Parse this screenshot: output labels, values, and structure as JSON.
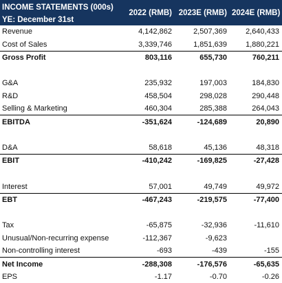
{
  "header": {
    "title": "INCOME STATEMENTS (000s)",
    "subtitle": "YE: December 31st",
    "columns": [
      "2022 (RMB)",
      "2023E (RMB)",
      "2024E (RMB)"
    ]
  },
  "colors": {
    "header_bg": "#16355f",
    "header_text": "#ffffff",
    "line": "#000000"
  },
  "rows": [
    {
      "label": "Revenue",
      "values": [
        "4,142,862",
        "2,507,369",
        "2,640,433"
      ]
    },
    {
      "label": "Cost of Sales",
      "values": [
        "3,339,746",
        "1,851,639",
        "1,880,221"
      ]
    },
    {
      "label": "Gross Profit",
      "values": [
        "803,116",
        "655,730",
        "760,211"
      ],
      "bold": true
    },
    {
      "spacer": true
    },
    {
      "label": "G&A",
      "values": [
        "235,932",
        "197,003",
        "184,830"
      ]
    },
    {
      "label": "R&D",
      "values": [
        "458,504",
        "298,028",
        "290,448"
      ]
    },
    {
      "label": "Selling & Marketing",
      "values": [
        "460,304",
        "285,388",
        "264,043"
      ]
    },
    {
      "label": "EBITDA",
      "values": [
        "-351,624",
        "-124,689",
        "20,890"
      ],
      "bold": true
    },
    {
      "spacer": true
    },
    {
      "label": "D&A",
      "values": [
        "58,618",
        "45,136",
        "48,318"
      ]
    },
    {
      "label": "EBIT",
      "values": [
        "-410,242",
        "-169,825",
        "-27,428"
      ],
      "bold": true
    },
    {
      "spacer": true
    },
    {
      "label": "Interest",
      "values": [
        "57,001",
        "49,749",
        "49,972"
      ]
    },
    {
      "label": "EBT",
      "values": [
        "-467,243",
        "-219,575",
        "-77,400"
      ],
      "bold": true
    },
    {
      "spacer": true
    },
    {
      "label": "Tax",
      "values": [
        "-65,875",
        "-32,936",
        "-11,610"
      ]
    },
    {
      "label": "Unusual/Non-recurring expense",
      "values": [
        "-112,367",
        "-9,623",
        ""
      ]
    },
    {
      "label": "Non-controlling interest",
      "values": [
        "-693",
        "-439",
        "-155"
      ]
    },
    {
      "label": "Net Income",
      "values": [
        "-288,308",
        "-176,576",
        "-65,635"
      ],
      "bold": true
    },
    {
      "label": "EPS",
      "values": [
        "-1.17",
        "-0.70",
        "-0.26"
      ]
    }
  ]
}
